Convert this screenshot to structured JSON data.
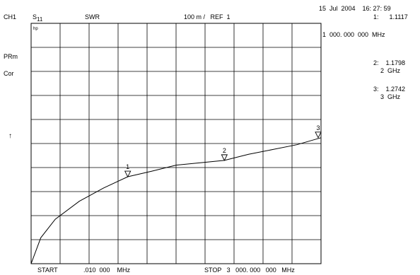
{
  "header": {
    "channel": "CH1",
    "param": "S",
    "param_sub": "11",
    "format": "SWR",
    "scale_ref": "100 m /   REF  1",
    "datetime": "15  Jul  2004    16: 27: 59"
  },
  "markers_panel": {
    "m1_value": "1:      1.1117",
    "m1_freq": "1  000. 000  000  MHz",
    "m2_value": "2:    1.1798",
    "m2_freq": "2  GHz",
    "m3_value": "3:    1.2742",
    "m3_freq": "3  GHz"
  },
  "side": {
    "prm": "PRm",
    "cor": "Cor",
    "ref_arrow": "↑"
  },
  "hp_label": "hp",
  "footer": {
    "start": "START",
    "start_freq": ".010  000    MHz",
    "stop": "STOP   3   000. 000   000   MHz"
  },
  "chart_data": {
    "type": "line",
    "xlabel": "",
    "ylabel": "",
    "xlim": [
      0.01,
      3000
    ],
    "ylim": [
      0.75,
      1.75
    ],
    "grid": true,
    "series": [
      {
        "x": [
          0.01,
          100,
          250,
          500,
          750,
          1000,
          1250,
          1500,
          1750,
          2000,
          2250,
          2500,
          2750,
          3000
        ],
        "y": [
          0.75,
          0.858,
          0.935,
          1.01,
          1.065,
          1.1117,
          1.135,
          1.16,
          1.17,
          1.1798,
          1.205,
          1.225,
          1.245,
          1.2742
        ]
      }
    ],
    "markers": [
      {
        "label": "1",
        "x": 1000,
        "y": 1.1117
      },
      {
        "label": "2",
        "x": 2000,
        "y": 1.1798
      },
      {
        "label": "3",
        "x": 3000,
        "y": 1.2742
      }
    ]
  }
}
